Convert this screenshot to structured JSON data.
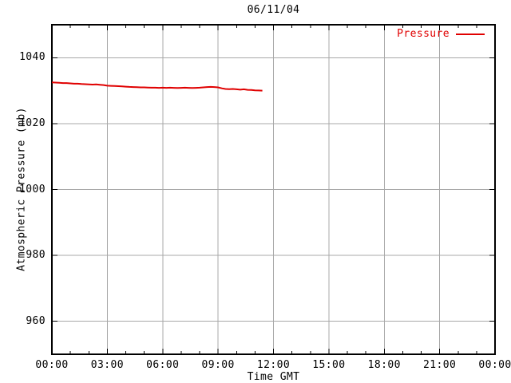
{
  "page": {
    "background": "#ffffff"
  },
  "chart_data": {
    "type": "line",
    "title": "06/11/04",
    "xlabel": "Time GMT",
    "ylabel": "Atmospheric Pressure (mb)",
    "x_tick_labels": [
      "00:00",
      "03:00",
      "06:00",
      "09:00",
      "12:00",
      "15:00",
      "18:00",
      "21:00",
      "00:00"
    ],
    "x_tick_hours": [
      0,
      3,
      6,
      9,
      12,
      15,
      18,
      21,
      24
    ],
    "x_minor_tick_interval_hours": 1,
    "y_ticks": [
      960,
      980,
      1000,
      1020,
      1040
    ],
    "xlim_hours": [
      0,
      24
    ],
    "ylim": [
      950,
      1050
    ],
    "grid": true,
    "legend": {
      "position": "top-right-inside",
      "label": "Pressure"
    },
    "colors": {
      "series": "#e00000",
      "grid": "#a8a8a8",
      "axis": "#000000",
      "text": "#000000",
      "background": "#ffffff"
    },
    "series": [
      {
        "name": "Pressure",
        "color": "#e00000",
        "points_hour_mb": [
          [
            0.0,
            1032.5
          ],
          [
            0.2,
            1032.45
          ],
          [
            0.4,
            1032.4
          ],
          [
            0.6,
            1032.3
          ],
          [
            0.8,
            1032.3
          ],
          [
            1.0,
            1032.2
          ],
          [
            1.2,
            1032.1
          ],
          [
            1.4,
            1032.1
          ],
          [
            1.6,
            1032.0
          ],
          [
            1.8,
            1031.95
          ],
          [
            2.0,
            1031.9
          ],
          [
            2.2,
            1031.85
          ],
          [
            2.4,
            1031.9
          ],
          [
            2.6,
            1031.8
          ],
          [
            2.8,
            1031.7
          ],
          [
            3.0,
            1031.5
          ],
          [
            3.2,
            1031.45
          ],
          [
            3.4,
            1031.4
          ],
          [
            3.6,
            1031.35
          ],
          [
            3.8,
            1031.3
          ],
          [
            4.0,
            1031.2
          ],
          [
            4.2,
            1031.15
          ],
          [
            4.4,
            1031.1
          ],
          [
            4.6,
            1031.05
          ],
          [
            4.8,
            1031.0
          ],
          [
            5.0,
            1031.0
          ],
          [
            5.2,
            1030.95
          ],
          [
            5.4,
            1030.9
          ],
          [
            5.6,
            1030.9
          ],
          [
            5.8,
            1030.85
          ],
          [
            6.0,
            1030.9
          ],
          [
            6.2,
            1030.85
          ],
          [
            6.4,
            1030.9
          ],
          [
            6.6,
            1030.85
          ],
          [
            6.8,
            1030.8
          ],
          [
            7.0,
            1030.85
          ],
          [
            7.2,
            1030.9
          ],
          [
            7.4,
            1030.85
          ],
          [
            7.6,
            1030.8
          ],
          [
            7.8,
            1030.85
          ],
          [
            8.0,
            1030.9
          ],
          [
            8.2,
            1031.0
          ],
          [
            8.4,
            1031.1
          ],
          [
            8.6,
            1031.15
          ],
          [
            8.8,
            1031.1
          ],
          [
            9.0,
            1031.0
          ],
          [
            9.2,
            1030.7
          ],
          [
            9.4,
            1030.5
          ],
          [
            9.6,
            1030.45
          ],
          [
            9.8,
            1030.5
          ],
          [
            10.0,
            1030.4
          ],
          [
            10.2,
            1030.3
          ],
          [
            10.4,
            1030.4
          ],
          [
            10.6,
            1030.25
          ],
          [
            10.8,
            1030.2
          ],
          [
            11.0,
            1030.1
          ],
          [
            11.2,
            1030.05
          ],
          [
            11.4,
            1030.0
          ]
        ]
      }
    ]
  }
}
